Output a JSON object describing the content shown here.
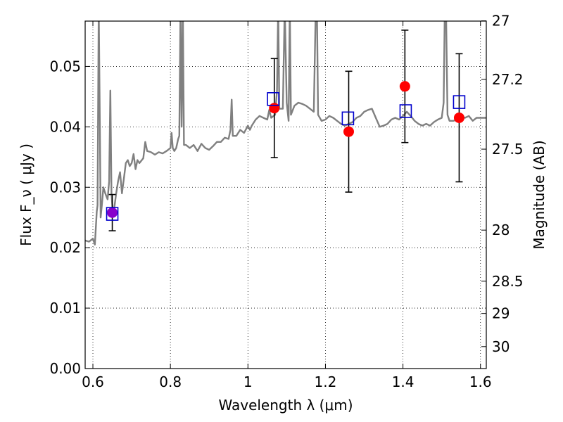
{
  "chart_data": {
    "type": "scatter",
    "title": "",
    "xlabel": "Wavelength  λ (μm)",
    "ylabel": "Flux  F_ν  ( μJy )",
    "y2label": "Magnitude (AB)",
    "xlim": [
      0.58,
      1.615
    ],
    "ylim": [
      0.0,
      0.0575
    ],
    "x_ticks": [
      0.6,
      0.8,
      1.0,
      1.2,
      1.4,
      1.6
    ],
    "x_tick_labels": [
      "0.6",
      "0.8",
      "1",
      "1.2",
      "1.4",
      "1.6"
    ],
    "y_ticks": [
      0.0,
      0.01,
      0.02,
      0.03,
      0.04,
      0.05
    ],
    "y_tick_labels": [
      "0.00",
      "0.01",
      "0.02",
      "0.03",
      "0.04",
      "0.05"
    ],
    "y2_ticks": [
      27,
      27.2,
      27.5,
      28,
      28.5,
      29,
      30
    ],
    "y2_tick_labels": [
      "27",
      "27.2",
      "27.5",
      "28",
      "28.5",
      "29",
      "30"
    ],
    "grid": true,
    "colors": {
      "spectrum": "#808080",
      "observed": "#ff0000",
      "model": "#0000cc",
      "overlap": "#8800cc",
      "errorbar": "#000000"
    },
    "series": [
      {
        "kind": "line",
        "points": [
          [
            0.58,
            0.0212
          ],
          [
            0.59,
            0.021
          ],
          [
            0.6,
            0.0215
          ],
          [
            0.605,
            0.0205
          ],
          [
            0.61,
            0.026
          ],
          [
            0.612,
            0.027
          ],
          [
            0.615,
            0.06
          ],
          [
            0.618,
            0.04
          ],
          [
            0.62,
            0.025
          ],
          [
            0.623,
            0.027
          ],
          [
            0.627,
            0.03
          ],
          [
            0.632,
            0.029
          ],
          [
            0.638,
            0.028
          ],
          [
            0.642,
            0.031
          ],
          [
            0.645,
            0.046
          ],
          [
            0.648,
            0.029
          ],
          [
            0.651,
            0.026
          ],
          [
            0.655,
            0.0265
          ],
          [
            0.66,
            0.029
          ],
          [
            0.665,
            0.031
          ],
          [
            0.67,
            0.0325
          ],
          [
            0.675,
            0.029
          ],
          [
            0.68,
            0.0315
          ],
          [
            0.685,
            0.034
          ],
          [
            0.69,
            0.0345
          ],
          [
            0.695,
            0.0335
          ],
          [
            0.7,
            0.034
          ],
          [
            0.705,
            0.0355
          ],
          [
            0.71,
            0.033
          ],
          [
            0.715,
            0.0345
          ],
          [
            0.72,
            0.034
          ],
          [
            0.73,
            0.0348
          ],
          [
            0.735,
            0.0375
          ],
          [
            0.74,
            0.036
          ],
          [
            0.75,
            0.0358
          ],
          [
            0.76,
            0.0354
          ],
          [
            0.77,
            0.0358
          ],
          [
            0.78,
            0.0356
          ],
          [
            0.79,
            0.036
          ],
          [
            0.8,
            0.0365
          ],
          [
            0.803,
            0.039
          ],
          [
            0.806,
            0.0365
          ],
          [
            0.81,
            0.036
          ],
          [
            0.815,
            0.0365
          ],
          [
            0.82,
            0.038
          ],
          [
            0.823,
            0.0385
          ],
          [
            0.826,
            0.06
          ],
          [
            0.829,
            0.04
          ],
          [
            0.832,
            0.06
          ],
          [
            0.835,
            0.037
          ],
          [
            0.84,
            0.037
          ],
          [
            0.85,
            0.0365
          ],
          [
            0.86,
            0.037
          ],
          [
            0.87,
            0.036
          ],
          [
            0.88,
            0.0372
          ],
          [
            0.89,
            0.0365
          ],
          [
            0.9,
            0.0362
          ],
          [
            0.91,
            0.0368
          ],
          [
            0.92,
            0.0375
          ],
          [
            0.93,
            0.0375
          ],
          [
            0.94,
            0.0382
          ],
          [
            0.95,
            0.038
          ],
          [
            0.955,
            0.0395
          ],
          [
            0.958,
            0.0445
          ],
          [
            0.961,
            0.0385
          ],
          [
            0.97,
            0.0385
          ],
          [
            0.98,
            0.0395
          ],
          [
            0.99,
            0.039
          ],
          [
            1.0,
            0.0402
          ],
          [
            1.005,
            0.0395
          ],
          [
            1.01,
            0.0402
          ],
          [
            1.02,
            0.0412
          ],
          [
            1.03,
            0.0418
          ],
          [
            1.04,
            0.0415
          ],
          [
            1.05,
            0.0412
          ],
          [
            1.055,
            0.0428
          ],
          [
            1.06,
            0.0415
          ],
          [
            1.07,
            0.042
          ],
          [
            1.075,
            0.046
          ],
          [
            1.078,
            0.06
          ],
          [
            1.081,
            0.043
          ],
          [
            1.09,
            0.043
          ],
          [
            1.095,
            0.06
          ],
          [
            1.1,
            0.044
          ],
          [
            1.105,
            0.041
          ],
          [
            1.108,
            0.06
          ],
          [
            1.111,
            0.042
          ],
          [
            1.12,
            0.0435
          ],
          [
            1.13,
            0.044
          ],
          [
            1.14,
            0.0438
          ],
          [
            1.15,
            0.0435
          ],
          [
            1.16,
            0.043
          ],
          [
            1.17,
            0.0425
          ],
          [
            1.175,
            0.06
          ],
          [
            1.178,
            0.06
          ],
          [
            1.181,
            0.042
          ],
          [
            1.19,
            0.041
          ],
          [
            1.2,
            0.0412
          ],
          [
            1.21,
            0.0418
          ],
          [
            1.22,
            0.0415
          ],
          [
            1.23,
            0.041
          ],
          [
            1.24,
            0.0405
          ],
          [
            1.25,
            0.0402
          ],
          [
            1.26,
            0.0405
          ],
          [
            1.27,
            0.0408
          ],
          [
            1.28,
            0.0415
          ],
          [
            1.29,
            0.0418
          ],
          [
            1.3,
            0.0425
          ],
          [
            1.31,
            0.0428
          ],
          [
            1.32,
            0.043
          ],
          [
            1.33,
            0.0415
          ],
          [
            1.34,
            0.04
          ],
          [
            1.35,
            0.0402
          ],
          [
            1.36,
            0.0405
          ],
          [
            1.37,
            0.0412
          ],
          [
            1.38,
            0.0415
          ],
          [
            1.39,
            0.0412
          ],
          [
            1.4,
            0.0418
          ],
          [
            1.41,
            0.0425
          ],
          [
            1.42,
            0.0418
          ],
          [
            1.43,
            0.041
          ],
          [
            1.44,
            0.0405
          ],
          [
            1.45,
            0.0402
          ],
          [
            1.46,
            0.0405
          ],
          [
            1.47,
            0.0402
          ],
          [
            1.48,
            0.0408
          ],
          [
            1.49,
            0.0412
          ],
          [
            1.5,
            0.0415
          ],
          [
            1.505,
            0.044
          ],
          [
            1.508,
            0.06
          ],
          [
            1.511,
            0.06
          ],
          [
            1.515,
            0.042
          ],
          [
            1.52,
            0.041
          ],
          [
            1.53,
            0.041
          ],
          [
            1.54,
            0.0412
          ],
          [
            1.55,
            0.0418
          ],
          [
            1.56,
            0.0415
          ],
          [
            1.57,
            0.0418
          ],
          [
            1.58,
            0.041
          ],
          [
            1.59,
            0.0415
          ],
          [
            1.6,
            0.0415
          ],
          [
            1.615,
            0.0415
          ]
        ]
      },
      {
        "kind": "observed",
        "points": [
          {
            "x": 0.65,
            "y": 0.0258,
            "yerr": 0.003
          },
          {
            "x": 1.068,
            "y": 0.0431,
            "yerr": 0.0082
          },
          {
            "x": 1.26,
            "y": 0.0392,
            "yerr": 0.01
          },
          {
            "x": 1.405,
            "y": 0.0467,
            "yerr": 0.0093
          },
          {
            "x": 1.545,
            "y": 0.0415,
            "yerr": 0.0106
          }
        ]
      },
      {
        "kind": "model",
        "points": [
          {
            "x": 0.65,
            "y": 0.0256
          },
          {
            "x": 1.065,
            "y": 0.0446
          },
          {
            "x": 1.258,
            "y": 0.0414
          },
          {
            "x": 1.407,
            "y": 0.0426
          },
          {
            "x": 1.545,
            "y": 0.0441
          }
        ]
      }
    ]
  }
}
